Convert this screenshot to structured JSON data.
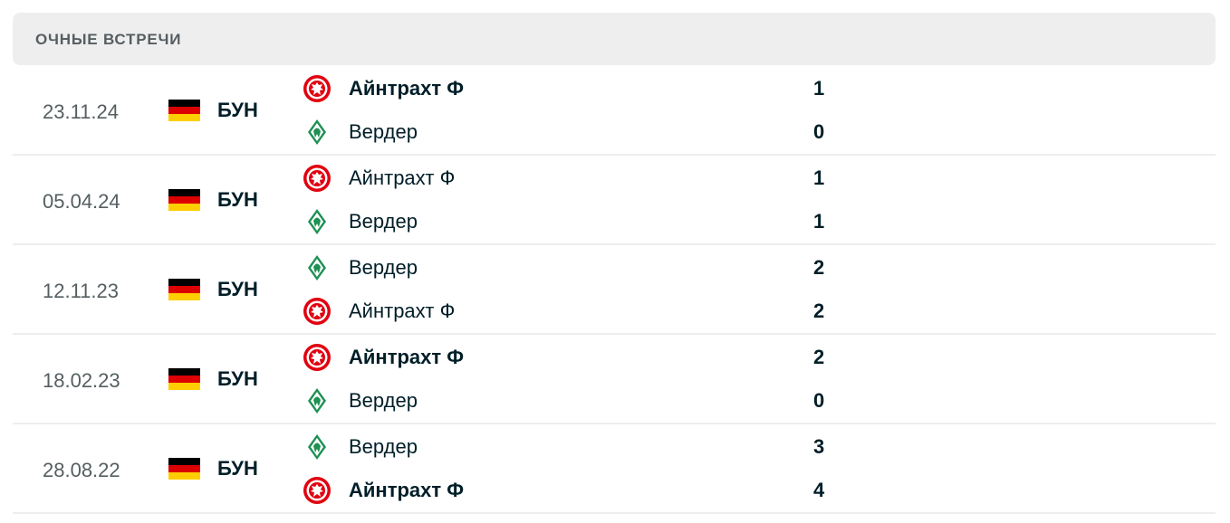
{
  "header": {
    "title": "ОЧНЫЕ ВСТРЕЧИ"
  },
  "colors": {
    "eintracht": "#e1000f",
    "werder": "#1d9053",
    "flag": [
      "#000000",
      "#dd0000",
      "#ffce00"
    ]
  },
  "matches": [
    {
      "date": "23.11.24",
      "league": "БУН",
      "home": {
        "name": "Айнтрахт Ф",
        "logo": "eintracht",
        "score": "1",
        "winner": true
      },
      "away": {
        "name": "Вердер",
        "logo": "werder",
        "score": "0",
        "winner": false
      }
    },
    {
      "date": "05.04.24",
      "league": "БУН",
      "home": {
        "name": "Айнтрахт Ф",
        "logo": "eintracht",
        "score": "1",
        "winner": false
      },
      "away": {
        "name": "Вердер",
        "logo": "werder",
        "score": "1",
        "winner": false
      }
    },
    {
      "date": "12.11.23",
      "league": "БУН",
      "home": {
        "name": "Вердер",
        "logo": "werder",
        "score": "2",
        "winner": false
      },
      "away": {
        "name": "Айнтрахт Ф",
        "logo": "eintracht",
        "score": "2",
        "winner": false
      }
    },
    {
      "date": "18.02.23",
      "league": "БУН",
      "home": {
        "name": "Айнтрахт Ф",
        "logo": "eintracht",
        "score": "2",
        "winner": true
      },
      "away": {
        "name": "Вердер",
        "logo": "werder",
        "score": "0",
        "winner": false
      }
    },
    {
      "date": "28.08.22",
      "league": "БУН",
      "home": {
        "name": "Вердер",
        "logo": "werder",
        "score": "3",
        "winner": false
      },
      "away": {
        "name": "Айнтрахт Ф",
        "logo": "eintracht",
        "score": "4",
        "winner": true
      }
    }
  ]
}
